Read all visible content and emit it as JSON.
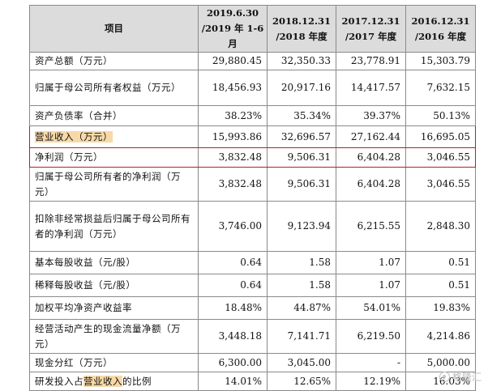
{
  "header": {
    "item": "项目",
    "cols": [
      {
        "line1": "2019.6.30",
        "line2": "/2019 年 1-6 月"
      },
      {
        "line1": "2018.12.31",
        "line2": "/2018 年度"
      },
      {
        "line1": "2017.12.31",
        "line2": "/2017 年度"
      },
      {
        "line1": "2016.12.31",
        "line2": "/2016 年度"
      }
    ]
  },
  "rows": [
    {
      "label": "资产总额（万元）",
      "values": [
        "29,880.45",
        "32,350.33",
        "23,778.91",
        "15,303.79"
      ]
    },
    {
      "label": "归属于母公司所有者权益（万元）",
      "values": [
        "18,456.93",
        "20,917.16",
        "14,417.57",
        "7,632.15"
      ]
    },
    {
      "label": "资产负债率（合并）",
      "values": [
        "38.23%",
        "35.34%",
        "39.37%",
        "50.13%"
      ]
    },
    {
      "label": "营业收入（万元）",
      "values": [
        "15,993.86",
        "32,696.57",
        "27,162.44",
        "16,695.05"
      ]
    },
    {
      "label": "净利润（万元）",
      "values": [
        "3,832.48",
        "9,506.31",
        "6,404.28",
        "3,046.55"
      ]
    },
    {
      "label": "归属于母公司所有者的净利润（万元）",
      "values": [
        "3,832.48",
        "9,506.31",
        "6,404.28",
        "3,046.55"
      ]
    },
    {
      "label": "扣除非经常损益后归属于母公司所有者的净利润（万元）",
      "values": [
        "3,746.00",
        "9,123.94",
        "6,215.55",
        "2,848.30"
      ]
    },
    {
      "label": "基本每股收益（元/股）",
      "values": [
        "0.64",
        "1.58",
        "1.07",
        "0.51"
      ]
    },
    {
      "label": "稀释每股收益（元/股）",
      "values": [
        "0.64",
        "1.58",
        "1.07",
        "0.51"
      ]
    },
    {
      "label": "加权平均净资产收益率",
      "values": [
        "18.48%",
        "44.87%",
        "54.01%",
        "19.83%"
      ]
    },
    {
      "label": "经营活动产生的现金流量净额（万元）",
      "values": [
        "3,448.18",
        "7,141.71",
        "6,219.50",
        "4,214.86"
      ]
    },
    {
      "label": "现金分红（万元）",
      "values": [
        "6,300.00",
        "3,045.00",
        "-",
        "5,000.00"
      ]
    },
    {
      "label_pre": "研发投入占",
      "label_hl": "营业收入",
      "label_post": "的比例",
      "values": [
        "14.01%",
        "12.65%",
        "12.19%",
        "16.03%"
      ]
    }
  ],
  "watermark": "格隆汇",
  "colors": {
    "highlight": "#f7d9a8",
    "highlight_border": "#b62020",
    "header_bg": "#dcdcdc"
  }
}
